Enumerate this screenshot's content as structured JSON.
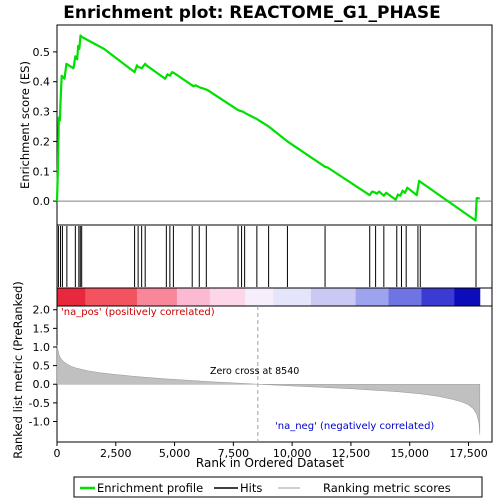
{
  "chart_data": {
    "type": "line",
    "title": "Enrichment plot: REACTOME_G1_PHASE",
    "es_panel": {
      "ylabel": "Enrichment score (ES)",
      "ylim": [
        -0.08,
        0.59
      ],
      "yticks": [
        "0.0",
        "0.1",
        "0.2",
        "0.3",
        "0.4",
        "0.5"
      ],
      "ytick_values": [
        0.0,
        0.1,
        0.2,
        0.3,
        0.4,
        0.5
      ],
      "series": [
        {
          "name": "Enrichment profile",
          "color": "#00e000",
          "x": [
            0,
            40,
            80,
            120,
            160,
            200,
            260,
            320,
            400,
            500,
            600,
            700,
            780,
            860,
            900,
            950,
            1000,
            1050,
            1100,
            2000,
            3300,
            3400,
            3450,
            3600,
            3750,
            3800,
            4600,
            4700,
            4800,
            4900,
            5000,
            5800,
            5900,
            6100,
            6200,
            6400,
            7700,
            7800,
            7900,
            8000,
            8500,
            9000,
            9800,
            11400,
            11500,
            13300,
            13400,
            13500,
            13600,
            13700,
            13900,
            14000,
            14400,
            14500,
            14600,
            14700,
            14800,
            14900,
            15300,
            15400,
            15500,
            17800,
            17850,
            17900,
            17980
          ],
          "y": [
            0.0,
            0.11,
            0.28,
            0.27,
            0.35,
            0.42,
            0.415,
            0.41,
            0.46,
            0.455,
            0.45,
            0.445,
            0.485,
            0.475,
            0.52,
            0.51,
            0.555,
            0.55,
            0.548,
            0.51,
            0.432,
            0.455,
            0.45,
            0.445,
            0.46,
            0.455,
            0.41,
            0.425,
            0.42,
            0.432,
            0.428,
            0.385,
            0.388,
            0.38,
            0.378,
            0.372,
            0.305,
            0.302,
            0.3,
            0.295,
            0.275,
            0.25,
            0.2,
            0.115,
            0.113,
            0.02,
            0.032,
            0.03,
            0.025,
            0.032,
            0.018,
            0.028,
            0.005,
            0.022,
            0.018,
            0.035,
            0.028,
            0.045,
            0.02,
            0.068,
            0.062,
            -0.065,
            0.01,
            0.01,
            0.008
          ]
        }
      ]
    },
    "hits_panel": {
      "legend_label": "Hits",
      "hit_positions": [
        60,
        150,
        230,
        420,
        780,
        930,
        990,
        1050,
        3300,
        3450,
        3600,
        3750,
        4650,
        4800,
        4950,
        5750,
        6050,
        6350,
        7700,
        7850,
        7980,
        8500,
        9000,
        9800,
        11400,
        13300,
        13550,
        13900,
        14450,
        14650,
        14850,
        15350,
        15450,
        17820
      ]
    },
    "color_bar": {
      "segments": [
        {
          "from": 0,
          "to": 1200,
          "color": "#e8283c"
        },
        {
          "from": 1200,
          "to": 3400,
          "color": "#f3525f"
        },
        {
          "from": 3400,
          "to": 5100,
          "color": "#f8879a"
        },
        {
          "from": 5100,
          "to": 6500,
          "color": "#fbbad2"
        },
        {
          "from": 6500,
          "to": 8000,
          "color": "#fdd6ea"
        },
        {
          "from": 8000,
          "to": 9200,
          "color": "#f6eefa"
        },
        {
          "from": 9200,
          "to": 10800,
          "color": "#e4e4fa"
        },
        {
          "from": 10800,
          "to": 12700,
          "color": "#c9c9f4"
        },
        {
          "from": 12700,
          "to": 14100,
          "color": "#9ea3ee"
        },
        {
          "from": 14100,
          "to": 15500,
          "color": "#6f74e2"
        },
        {
          "from": 15500,
          "to": 16900,
          "color": "#3b3bd4"
        },
        {
          "from": 16900,
          "to": 17980,
          "color": "#0c0cba"
        }
      ]
    },
    "metric_panel": {
      "ylabel": "Ranked list metric (PreRanked)",
      "xlabel": "Rank in Ordered Dataset",
      "ylim": [
        -1.55,
        2.1
      ],
      "yticks": [
        "2.0",
        "1.5",
        "1.0",
        "0.5",
        "0.0",
        "-0.5",
        "-1.0"
      ],
      "ytick_values": [
        2.0,
        1.5,
        1.0,
        0.5,
        0.0,
        -0.5,
        -1.0
      ],
      "xlim": [
        0,
        18500
      ],
      "xticks": [
        "0",
        "2,500",
        "5,000",
        "7,500",
        "10,000",
        "12,500",
        "15,000",
        "17,500"
      ],
      "xtick_values": [
        0,
        2500,
        5000,
        7500,
        10000,
        12500,
        15000,
        17500
      ],
      "curve_x": [
        0,
        30,
        80,
        150,
        250,
        400,
        600,
        900,
        1300,
        1800,
        2500,
        3500,
        4500,
        5500,
        6500,
        7500,
        8540,
        9500,
        10500,
        11500,
        12500,
        13500,
        14500,
        15500,
        16200,
        16800,
        17200,
        17500,
        17700,
        17850,
        17950,
        17980
      ],
      "curve_y": [
        1.05,
        0.95,
        0.8,
        0.7,
        0.62,
        0.55,
        0.48,
        0.42,
        0.36,
        0.31,
        0.26,
        0.2,
        0.15,
        0.11,
        0.07,
        0.035,
        0.0,
        -0.03,
        -0.06,
        -0.09,
        -0.12,
        -0.16,
        -0.2,
        -0.26,
        -0.32,
        -0.4,
        -0.47,
        -0.55,
        -0.65,
        -0.8,
        -1.05,
        -1.35
      ],
      "fill_color": "#c0c0c0",
      "zero_cross_label": "Zero cross at 8540",
      "zero_cross_x": 8540,
      "pos_label": "'na_pos' (positively correlated)",
      "pos_color": "#cc0000",
      "neg_label": "'na_neg' (negatively correlated)",
      "neg_color": "#0000cc"
    },
    "legend": {
      "items": [
        {
          "label": "Enrichment profile",
          "color": "#00e000",
          "kind": "line"
        },
        {
          "label": "Hits",
          "color": "#000000",
          "kind": "line"
        },
        {
          "label": "Ranking metric scores",
          "color": "#c0c0c0",
          "kind": "line"
        }
      ]
    }
  }
}
